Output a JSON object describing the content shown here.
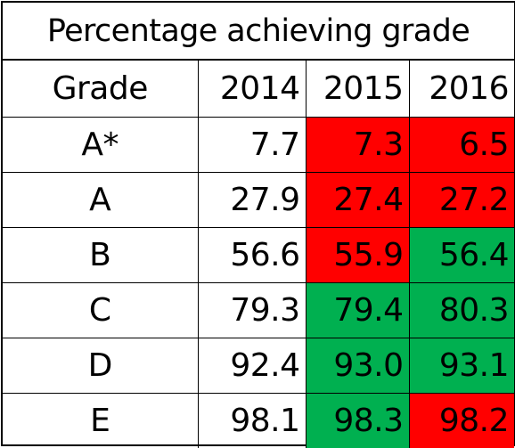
{
  "table": {
    "title": "Percentage achieving grade",
    "header": {
      "grade_label": "Grade",
      "years": [
        "2014",
        "2015",
        "2016"
      ]
    },
    "rows": [
      {
        "grade": "A*",
        "values": [
          "7.7",
          "7.3",
          "6.5"
        ],
        "fills": [
          "none",
          "red",
          "red"
        ]
      },
      {
        "grade": "A",
        "values": [
          "27.9",
          "27.4",
          "27.2"
        ],
        "fills": [
          "none",
          "red",
          "red"
        ]
      },
      {
        "grade": "B",
        "values": [
          "56.6",
          "55.9",
          "56.4"
        ],
        "fills": [
          "none",
          "red",
          "green"
        ]
      },
      {
        "grade": "C",
        "values": [
          "79.3",
          "79.4",
          "80.3"
        ],
        "fills": [
          "none",
          "green",
          "green"
        ]
      },
      {
        "grade": "D",
        "values": [
          "92.4",
          "93.0",
          "93.1"
        ],
        "fills": [
          "none",
          "green",
          "green"
        ]
      },
      {
        "grade": "E",
        "values": [
          "98.1",
          "98.3",
          "98.2"
        ],
        "fills": [
          "none",
          "green",
          "red"
        ]
      }
    ],
    "colors": {
      "red": "#ff0000",
      "green": "#00b050",
      "border": "#000000",
      "background": "#ffffff"
    }
  }
}
